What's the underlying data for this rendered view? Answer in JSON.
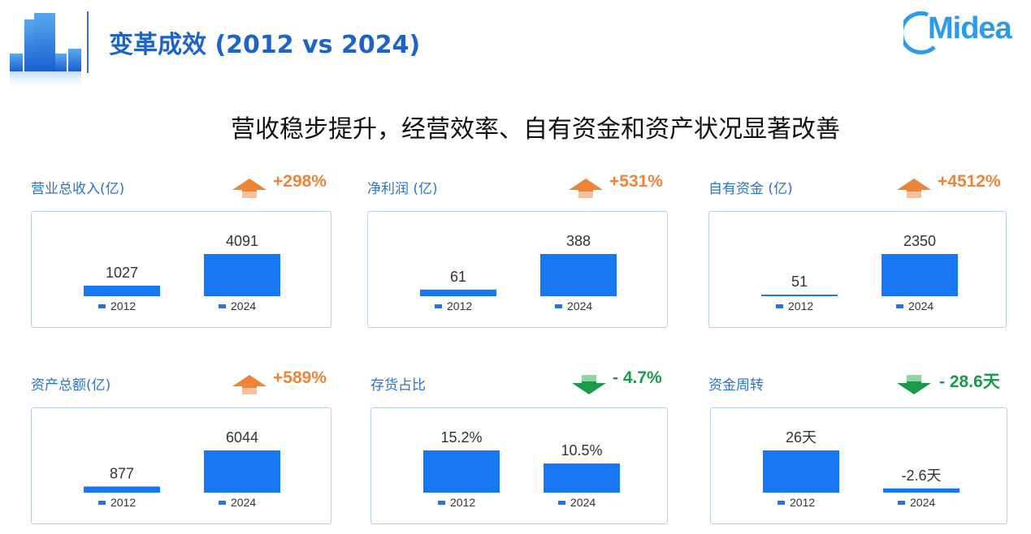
{
  "header": {
    "title": "变革成效 (2012 vs 2024)",
    "brand": "Midea"
  },
  "subtitle": "营收稳步提升，经营效率、自有资金和资产状况显著改善",
  "colors": {
    "bar": "#1877f2",
    "up": "#ee8438",
    "down": "#1b9b4a",
    "title": "#1e63c9",
    "label": "#2a73c8"
  },
  "chart_data": [
    {
      "type": "bar",
      "title": "营业总收入(亿)",
      "change": "+298%",
      "direction": "up",
      "categories": [
        "2012",
        "2024"
      ],
      "values": [
        1027,
        4091
      ],
      "value_labels": [
        "1027",
        "4091"
      ]
    },
    {
      "type": "bar",
      "title": "净利润 (亿)",
      "change": "+531%",
      "direction": "up",
      "categories": [
        "2012",
        "2024"
      ],
      "values": [
        61,
        388
      ],
      "value_labels": [
        "61",
        "388"
      ]
    },
    {
      "type": "bar",
      "title": "自有资金 (亿)",
      "change": "+4512%",
      "direction": "up",
      "categories": [
        "2012",
        "2024"
      ],
      "values": [
        51,
        2350
      ],
      "value_labels": [
        "51",
        "2350"
      ]
    },
    {
      "type": "bar",
      "title": "资产总额(亿)",
      "change": "+589%",
      "direction": "up",
      "categories": [
        "2012",
        "2024"
      ],
      "values": [
        877,
        6044
      ],
      "value_labels": [
        "877",
        "6044"
      ]
    },
    {
      "type": "bar",
      "title": "存货占比",
      "change": "- 4.7%",
      "direction": "down",
      "categories": [
        "2012",
        "2024"
      ],
      "values": [
        15.2,
        10.5
      ],
      "value_labels": [
        "15.2%",
        "10.5%"
      ]
    },
    {
      "type": "bar",
      "title": "资金周转",
      "change": "- 28.6天",
      "direction": "down",
      "categories": [
        "2012",
        "2024"
      ],
      "values": [
        26,
        -2.6
      ],
      "value_labels": [
        "26天",
        "-2.6天"
      ]
    }
  ]
}
